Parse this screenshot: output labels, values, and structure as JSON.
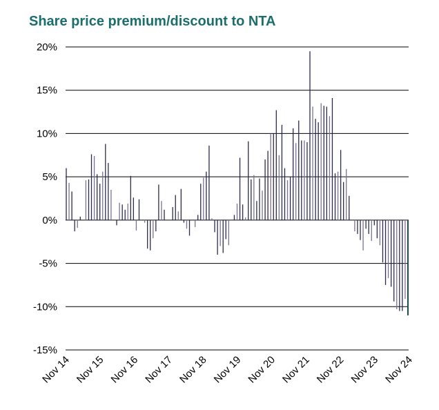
{
  "chart_data": {
    "type": "bar",
    "title": "Share price premium/discount to NTA",
    "xlabel": "",
    "ylabel": "",
    "ylim": [
      -15,
      20
    ],
    "yticks": [
      20,
      15,
      10,
      5,
      0,
      -5,
      -10,
      -15
    ],
    "ytick_labels": [
      "20%",
      "15%",
      "10%",
      "5%",
      "0%",
      "-5%",
      "-10%",
      "-15%"
    ],
    "xtick_labels": [
      "Nov 14",
      "Nov 15",
      "Nov 16",
      "Nov 17",
      "Nov 18",
      "Nov 19",
      "Nov 20",
      "Nov 21",
      "Nov 22",
      "Nov 23",
      "Nov 24"
    ],
    "grid": "horizontal",
    "legend": "none",
    "colors": {
      "title": "#1a6e6e",
      "bar_dark": "#2a2a4a",
      "bar_light": "#7a7090",
      "last_bar": "#1e4a4a"
    },
    "values": [
      6.0,
      4.3,
      3.3,
      -1.3,
      -0.9,
      0.4,
      0,
      4.6,
      4.7,
      7.6,
      7.4,
      5.3,
      4.2,
      5.6,
      8.8,
      6.6,
      3.5,
      0,
      -0.6,
      2.0,
      1.8,
      1.2,
      1.9,
      5.1,
      2.6,
      -1.2,
      2.4,
      0,
      -0.3,
      -3.3,
      -3.5,
      -2.1,
      -1.3,
      4.1,
      2.2,
      1.2,
      0,
      0,
      1.5,
      2.9,
      1.0,
      3.6,
      -0.3,
      -1.0,
      -1.8,
      0,
      -0.8,
      0.6,
      4.2,
      4.9,
      5.6,
      8.6,
      0.2,
      -1.4,
      -4.0,
      -3.0,
      -3.8,
      -2.2,
      -2.9,
      0,
      0.6,
      1.9,
      7.2,
      1.8,
      0.3,
      9.1,
      4.7,
      5.2,
      2.2,
      4.8,
      3.4,
      7.0,
      8.0,
      10.0,
      10.0,
      12.7,
      7.5,
      11.0,
      6.0,
      4.6,
      5.0,
      10.6,
      8.9,
      11.5,
      9.2,
      9.2,
      9.0,
      19.5,
      13.1,
      11.7,
      11.3,
      13.5,
      13.2,
      13.1,
      12.0,
      14.1,
      5.4,
      5.6,
      8.1,
      4.4,
      5.9,
      2.8,
      0,
      -1.3,
      -1.6,
      -2.3,
      -3.5,
      -1.0,
      -1.6,
      -2.4,
      -0.6,
      -2.1,
      -2.9,
      -4.9,
      -7.5,
      -6.7,
      -7.7,
      -9.4,
      -10.3,
      -10.5,
      -10.5,
      -9.1,
      -11.0
    ]
  }
}
